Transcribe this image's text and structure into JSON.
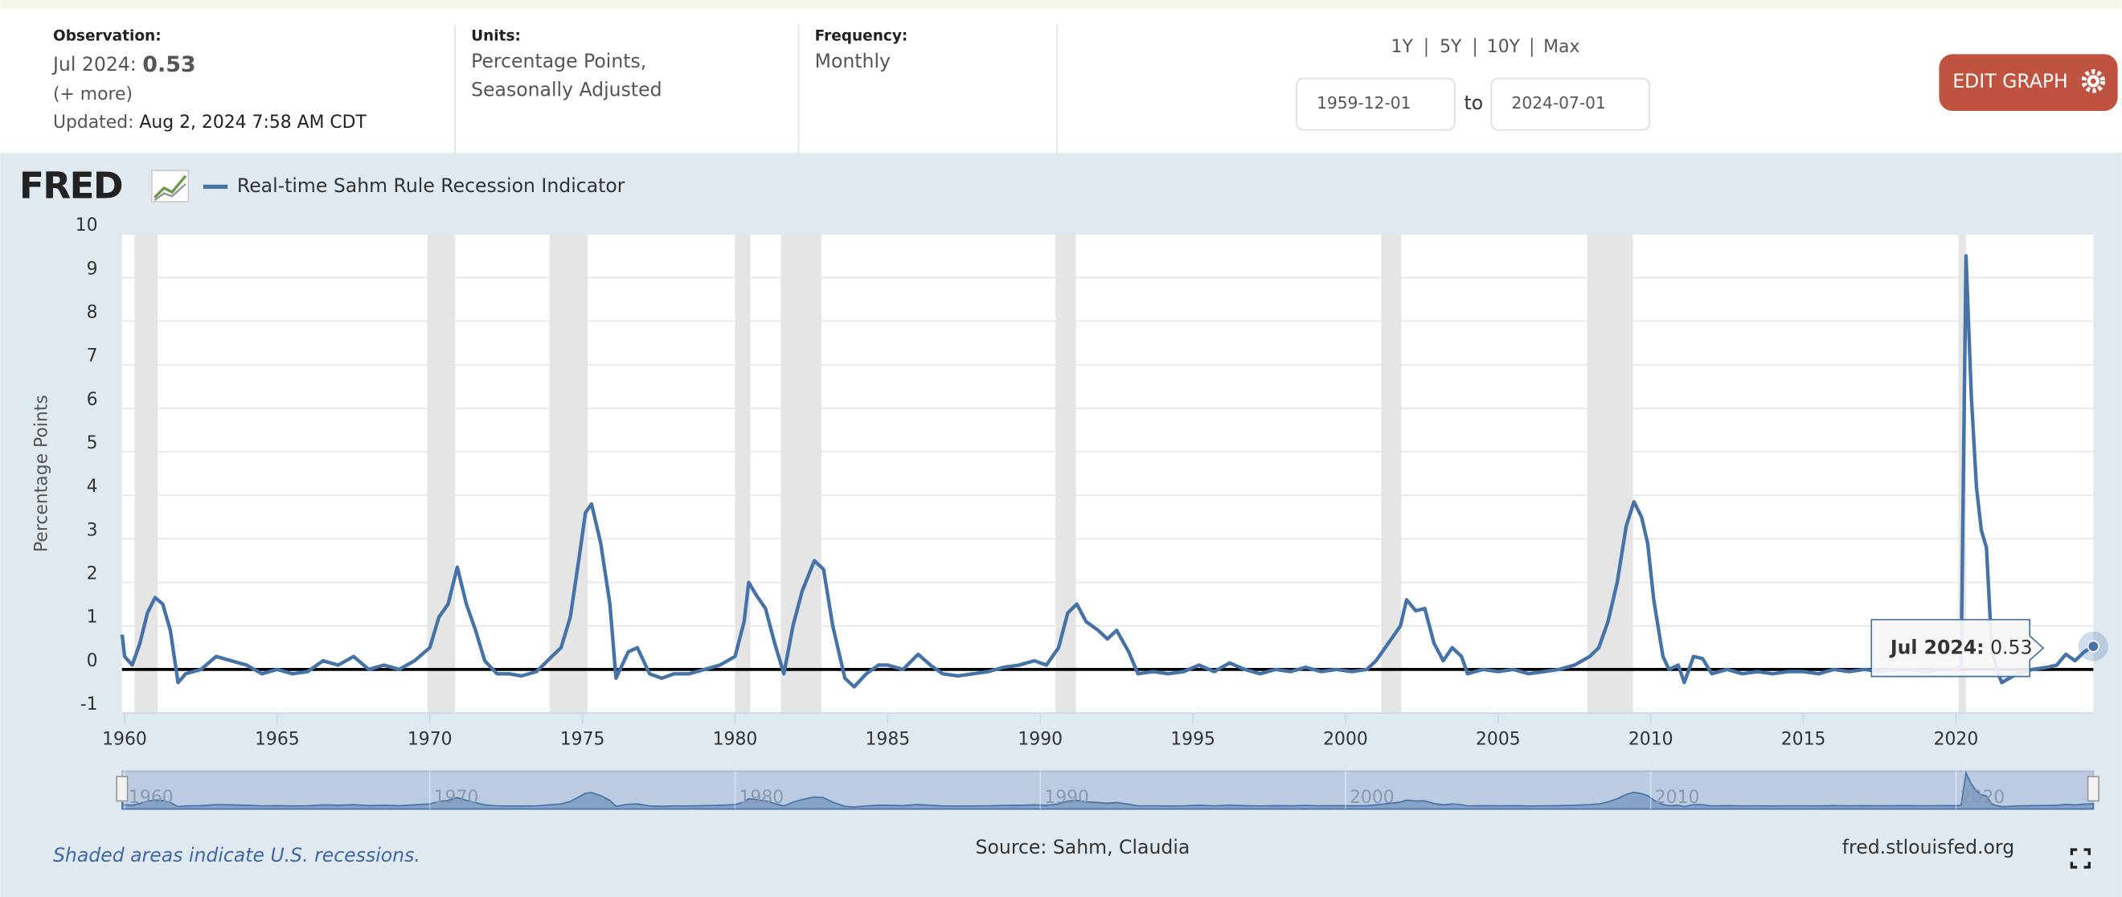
{
  "header": {
    "observation_label": "Observation:",
    "observation_date": "Jul 2024:",
    "observation_value": 0.53,
    "more": "(+ more)",
    "updated_label": "Updated:",
    "updated": "Aug 2, 2024 7:58 AM CDT",
    "units_label": "Units:",
    "units": [
      "Percentage Points,",
      "Seasonally Adjusted"
    ],
    "frequency_label": "Frequency:",
    "frequency": "Monthly",
    "ranges": [
      "1Y",
      "5Y",
      "10Y",
      "Max"
    ],
    "start": "1959-12-01",
    "to": "to",
    "end": "2024-07-01",
    "edit": "EDIT GRAPH"
  },
  "logo": "FRED",
  "chart_data": {
    "type": "line",
    "ylabel": "Percentage Points",
    "xlim": [
      1959.917,
      2024.5
    ],
    "ylim": [
      -1,
      10
    ],
    "xticks": [
      1960,
      1965,
      1970,
      1975,
      1980,
      1985,
      1990,
      1995,
      2000,
      2005,
      2010,
      2015,
      2020
    ],
    "yticks": [
      -1,
      0,
      1,
      2,
      3,
      4,
      5,
      6,
      7,
      8,
      9,
      10
    ],
    "navigator_ticks": [
      1960,
      1970,
      1980,
      1990,
      2000,
      2010,
      2020
    ],
    "recessions": [
      [
        1960.33,
        1961.08
      ],
      [
        1969.92,
        1970.83
      ],
      [
        1973.92,
        1975.17
      ],
      [
        1980.0,
        1980.5
      ],
      [
        1981.5,
        1982.83
      ],
      [
        1990.5,
        1991.17
      ],
      [
        2001.17,
        2001.83
      ],
      [
        2007.92,
        2009.42
      ],
      [
        2020.08,
        2020.33
      ]
    ],
    "x": [
      1959.92,
      1960.0,
      1960.25,
      1960.5,
      1960.75,
      1961.0,
      1961.25,
      1961.5,
      1961.75,
      1962.0,
      1962.5,
      1963.0,
      1963.5,
      1964,
      1964.5,
      1965,
      1965.5,
      1966,
      1966.5,
      1967,
      1967.5,
      1968,
      1968.5,
      1969,
      1969.5,
      1970.0,
      1970.3,
      1970.6,
      1970.9,
      1971.2,
      1971.5,
      1971.8,
      1972.2,
      1972.6,
      1973.0,
      1973.5,
      1974.0,
      1974.3,
      1974.6,
      1974.9,
      1975.1,
      1975.3,
      1975.6,
      1975.9,
      1976.1,
      1976.5,
      1976.8,
      1977.2,
      1977.6,
      1978,
      1978.5,
      1979,
      1979.5,
      1980.0,
      1980.3,
      1980.45,
      1980.7,
      1981.0,
      1981.3,
      1981.6,
      1981.9,
      1982.2,
      1982.6,
      1982.9,
      1983.2,
      1983.6,
      1983.9,
      1984.3,
      1984.7,
      1985,
      1985.5,
      1986,
      1986.4,
      1986.8,
      1987.3,
      1987.8,
      1988.3,
      1988.8,
      1989.3,
      1989.8,
      1990.2,
      1990.6,
      1990.9,
      1991.2,
      1991.5,
      1991.9,
      1992.2,
      1992.5,
      1992.9,
      1993.2,
      1993.7,
      1994.2,
      1994.7,
      1995.2,
      1995.7,
      1996.2,
      1996.7,
      1997.2,
      1997.7,
      1998.2,
      1998.7,
      1999.2,
      1999.7,
      2000.2,
      2000.7,
      2001.0,
      2001.4,
      2001.8,
      2002.0,
      2002.3,
      2002.6,
      2002.9,
      2003.2,
      2003.5,
      2003.8,
      2004.0,
      2004.5,
      2005,
      2005.5,
      2006,
      2006.5,
      2007,
      2007.5,
      2008.0,
      2008.3,
      2008.6,
      2008.9,
      2009.2,
      2009.45,
      2009.7,
      2009.9,
      2010.1,
      2010.4,
      2010.6,
      2010.9,
      2011.1,
      2011.4,
      2011.7,
      2012.0,
      2012.5,
      2013,
      2013.5,
      2014,
      2014.5,
      2015,
      2015.5,
      2016,
      2016.5,
      2017,
      2017.5,
      2018,
      2018.5,
      2019,
      2019.5,
      2020.0,
      2020.17,
      2020.33,
      2020.5,
      2020.67,
      2020.83,
      2021.0,
      2021.17,
      2021.33,
      2021.5,
      2021.75,
      2022.0,
      2022.5,
      2023.0,
      2023.3,
      2023.6,
      2023.9,
      2024.2,
      2024.5
    ],
    "series": [
      {
        "name": "Real-time Sahm Rule Recession Indicator",
        "color": "#4572a7",
        "values": [
          0.8,
          0.3,
          0.1,
          0.6,
          1.3,
          1.65,
          1.5,
          0.9,
          -0.3,
          -0.1,
          0.0,
          0.3,
          0.2,
          0.1,
          -0.1,
          0.0,
          -0.1,
          -0.05,
          0.2,
          0.1,
          0.3,
          0.0,
          0.1,
          0.0,
          0.2,
          0.5,
          1.2,
          1.5,
          2.35,
          1.5,
          0.9,
          0.2,
          -0.1,
          -0.1,
          -0.15,
          -0.05,
          0.3,
          0.5,
          1.2,
          2.6,
          3.6,
          3.8,
          2.9,
          1.5,
          -0.2,
          0.4,
          0.5,
          -0.1,
          -0.2,
          -0.1,
          -0.1,
          0.0,
          0.1,
          0.3,
          1.1,
          2.0,
          1.7,
          1.4,
          0.6,
          -0.1,
          1.0,
          1.8,
          2.5,
          2.3,
          1.0,
          -0.2,
          -0.4,
          -0.1,
          0.1,
          0.1,
          0.0,
          0.35,
          0.1,
          -0.1,
          -0.15,
          -0.1,
          -0.05,
          0.05,
          0.1,
          0.2,
          0.1,
          0.5,
          1.3,
          1.5,
          1.1,
          0.9,
          0.7,
          0.9,
          0.4,
          -0.1,
          -0.05,
          -0.1,
          -0.05,
          0.1,
          -0.05,
          0.15,
          0.0,
          -0.1,
          0.0,
          -0.05,
          0.05,
          -0.05,
          0.0,
          -0.05,
          0.0,
          0.2,
          0.6,
          1.0,
          1.6,
          1.35,
          1.4,
          0.6,
          0.2,
          0.5,
          0.3,
          -0.1,
          0.0,
          -0.05,
          0.0,
          -0.1,
          -0.05,
          0.0,
          0.1,
          0.3,
          0.5,
          1.1,
          2.0,
          3.3,
          3.85,
          3.5,
          2.9,
          1.6,
          0.3,
          0.0,
          0.1,
          -0.3,
          0.3,
          0.25,
          -0.1,
          0.0,
          -0.1,
          -0.05,
          -0.1,
          -0.05,
          -0.05,
          -0.1,
          0.0,
          -0.05,
          0.0,
          -0.05,
          0.0,
          0.0,
          -0.05,
          0.0,
          0.0,
          0.1,
          9.5,
          6.3,
          4.2,
          3.2,
          2.8,
          0.5,
          0.0,
          -0.3,
          -0.2,
          -0.1,
          0.0,
          0.05,
          0.1,
          0.35,
          0.2,
          0.4,
          0.53
        ]
      }
    ],
    "tooltip": {
      "date": "Jul 2024:",
      "value": 0.53
    }
  },
  "footer": {
    "note": "Shaded areas indicate U.S. recessions.",
    "source": "Source: Sahm, Claudia",
    "site": "fred.stlouisfed.org"
  }
}
